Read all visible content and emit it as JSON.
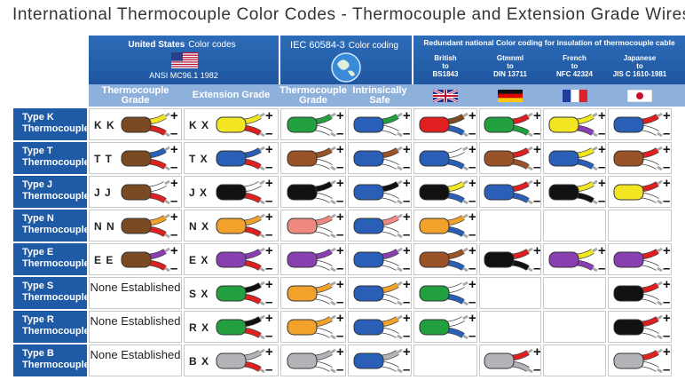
{
  "title": "International Thermocouple Color Codes - Thermocouple and Extension Grade Wires",
  "symbols": {
    "positive": "+",
    "negative": "–"
  },
  "header": {
    "us_title": "United States",
    "us_sub": "Color codes",
    "us_std": "ANSI MC96.1   1982",
    "iec_title": "IEC 60584-3",
    "iec_sub": "Color coding",
    "national": "Redundant national Color coding for insulation of thermocouple cable",
    "countries": [
      [
        "British",
        "to",
        "BS1843"
      ],
      [
        "Gtmnml",
        "to",
        "DIN 13711"
      ],
      [
        "French",
        "to",
        "NFC 42324"
      ],
      [
        "Japanese",
        "to",
        "JIS C 1610-1981"
      ]
    ],
    "columns": [
      "Thermocouple Grade",
      "Extension Grade",
      "Thermocouple Grade",
      "Intrinsically Safe"
    ]
  },
  "rows": [
    {
      "label": [
        "Type K",
        "Thermocouple"
      ],
      "tc_code": "K K",
      "ext_code": "K X",
      "cells": [
        [
          "#7a4a22",
          "#f2e622",
          "#e02020"
        ],
        [
          "#f2e622",
          "#f2e622",
          "#e02020"
        ],
        [
          "#22a040",
          "#22a040",
          "#ffffff"
        ],
        [
          "#2a5fb8",
          "#22a040",
          "#ffffff"
        ],
        [
          "#e02020",
          "#7a4a22",
          "#2a5fb8"
        ],
        [
          "#22a040",
          "#e02020",
          "#22a040"
        ],
        [
          "#f2e622",
          "#f2e622",
          "#8a3fb0"
        ],
        [
          "#2a5fb8",
          "#e02020",
          "#ffffff"
        ]
      ]
    },
    {
      "label": [
        "Type T",
        "Thermocouple"
      ],
      "tc_code": "T T",
      "ext_code": "T X",
      "cells": [
        [
          "#7a4a22",
          "#2a5fb8",
          "#e02020"
        ],
        [
          "#2a5fb8",
          "#2a5fb8",
          "#e02020"
        ],
        [
          "#9a5228",
          "#9a5228",
          "#ffffff"
        ],
        [
          "#2a5fb8",
          "#9a5228",
          "#ffffff"
        ],
        [
          "#2a5fb8",
          "#ffffff",
          "#2a5fb8"
        ],
        [
          "#9a5228",
          "#e02020",
          "#9a5228"
        ],
        [
          "#2a5fb8",
          "#f2e622",
          "#2a5fb8"
        ],
        [
          "#9a5228",
          "#e02020",
          "#ffffff"
        ]
      ]
    },
    {
      "label": [
        "Type J",
        "Thermocouple"
      ],
      "tc_code": "J J",
      "ext_code": "J X",
      "cells": [
        [
          "#7a4a22",
          "#ffffff",
          "#e02020"
        ],
        [
          "#111111",
          "#ffffff",
          "#e02020"
        ],
        [
          "#111111",
          "#111111",
          "#ffffff"
        ],
        [
          "#2a5fb8",
          "#111111",
          "#ffffff"
        ],
        [
          "#111111",
          "#f2e622",
          "#2a5fb8"
        ],
        [
          "#2a5fb8",
          "#e02020",
          "#2a5fb8"
        ],
        [
          "#111111",
          "#f2e622",
          "#111111"
        ],
        [
          "#f2e622",
          "#e02020",
          "#ffffff"
        ]
      ]
    },
    {
      "label": [
        "Type N",
        "Thermocouple"
      ],
      "tc_code": "N N",
      "ext_code": "N X",
      "cells": [
        [
          "#7a4a22",
          "#f2a22a",
          "#e02020"
        ],
        [
          "#f2a22a",
          "#f2a22a",
          "#e02020"
        ],
        [
          "#f08a80",
          "#f08a80",
          "#ffffff"
        ],
        [
          "#2a5fb8",
          "#f08a80",
          "#ffffff"
        ],
        [
          "#f2a22a",
          "#f2a22a",
          "#2a5fb8"
        ],
        null,
        null,
        null
      ]
    },
    {
      "label": [
        "Type E",
        "Thermocouple"
      ],
      "tc_code": "E E",
      "ext_code": "E X",
      "cells": [
        [
          "#7a4a22",
          "#8a3fb0",
          "#e02020"
        ],
        [
          "#8a3fb0",
          "#8a3fb0",
          "#e02020"
        ],
        [
          "#8a3fb0",
          "#8a3fb0",
          "#ffffff"
        ],
        [
          "#2a5fb8",
          "#8a3fb0",
          "#ffffff"
        ],
        [
          "#9a5228",
          "#9a5228",
          "#2a5fb8"
        ],
        [
          "#111111",
          "#e02020",
          "#111111"
        ],
        [
          "#8a3fb0",
          "#f2e622",
          "#8a3fb0"
        ],
        [
          "#8a3fb0",
          "#e02020",
          "#ffffff"
        ]
      ]
    },
    {
      "label": [
        "Type S",
        "Thermocouple"
      ],
      "tc_code": "None Established",
      "ext_code": "S X",
      "cells": [
        null,
        [
          "#22a040",
          "#111111",
          "#e02020"
        ],
        [
          "#f2a22a",
          "#f2a22a",
          "#ffffff"
        ],
        [
          "#2a5fb8",
          "#f2a22a",
          "#ffffff"
        ],
        [
          "#22a040",
          "#ffffff",
          "#2a5fb8"
        ],
        null,
        null,
        [
          "#111111",
          "#e02020",
          "#ffffff"
        ]
      ]
    },
    {
      "label": [
        "Type R",
        "Thermocouple"
      ],
      "tc_code": "None Established",
      "ext_code": "R X",
      "cells": [
        null,
        [
          "#22a040",
          "#111111",
          "#e02020"
        ],
        [
          "#f2a22a",
          "#f2a22a",
          "#ffffff"
        ],
        [
          "#2a5fb8",
          "#f2a22a",
          "#ffffff"
        ],
        [
          "#22a040",
          "#ffffff",
          "#2a5fb8"
        ],
        null,
        null,
        [
          "#111111",
          "#e02020",
          "#ffffff"
        ]
      ]
    },
    {
      "label": [
        "Type B",
        "Thermocouple"
      ],
      "tc_code": "None Established",
      "ext_code": "B X",
      "cells": [
        null,
        [
          "#b4b4b8",
          "#b4b4b8",
          "#e02020"
        ],
        [
          "#b4b4b8",
          "#b4b4b8",
          "#ffffff"
        ],
        [
          "#2a5fb8",
          "#b4b4b8",
          "#ffffff"
        ],
        null,
        [
          "#b4b4b8",
          "#e02020",
          "#b4b4b8"
        ],
        null,
        [
          "#b4b4b8",
          "#e02020",
          "#ffffff"
        ]
      ]
    }
  ]
}
